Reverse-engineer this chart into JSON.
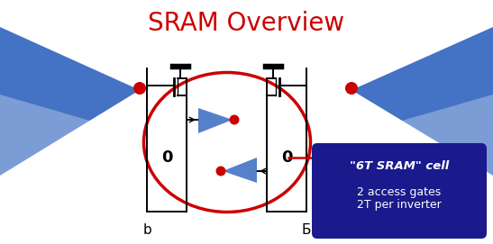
{
  "title": "SRAM Overview",
  "title_color": "#cc0000",
  "title_fontsize": 20,
  "bg_color": "#ffffff",
  "fig_width": 5.47,
  "fig_height": 2.71,
  "box_color": "#1a1a8c",
  "box_text1": "\"6T SRAM\" cell",
  "box_text2": "2 access gates",
  "box_text3": "2T per inverter",
  "box_text_color": "#ffffff",
  "label_b": "b",
  "label_bbar": "Б",
  "circuit_color": "#000000",
  "circle_color": "#cc0000",
  "ellipse_color": "#cc0000",
  "triangle_color": "#4472c4",
  "shadow_color": "#c0c0c8"
}
